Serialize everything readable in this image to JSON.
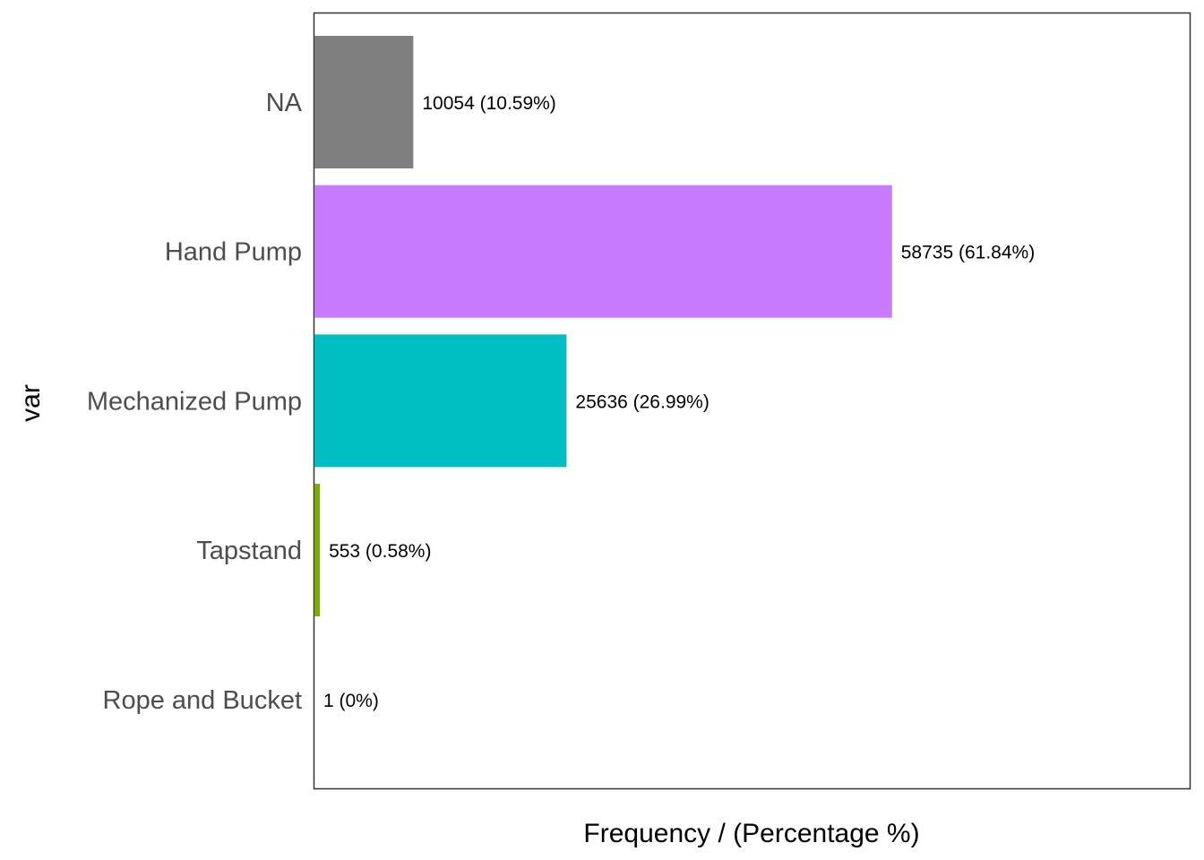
{
  "chart_data": {
    "type": "bar",
    "orientation": "horizontal",
    "categories": [
      "NA",
      "Hand Pump",
      "Mechanized Pump",
      "Tapstand",
      "Rope and Bucket"
    ],
    "values": [
      10054,
      58735,
      25636,
      553,
      1
    ],
    "percentages": [
      10.59,
      61.84,
      26.99,
      0.58,
      0
    ],
    "data_labels": [
      "10054 (10.59%)",
      "58735 (61.84%)",
      "25636 (26.99%)",
      "553 (0.58%)",
      "1 (0%)"
    ],
    "colors": [
      "#7f7f7f",
      "#c77cff",
      "#00bfc4",
      "#7cae00",
      "#f8766d"
    ],
    "xlabel": "Frequency / (Percentage %)",
    "ylabel": "var",
    "xlim": [
      0,
      89000
    ],
    "grid": false,
    "legend": "none",
    "x_tick_labels": false
  }
}
